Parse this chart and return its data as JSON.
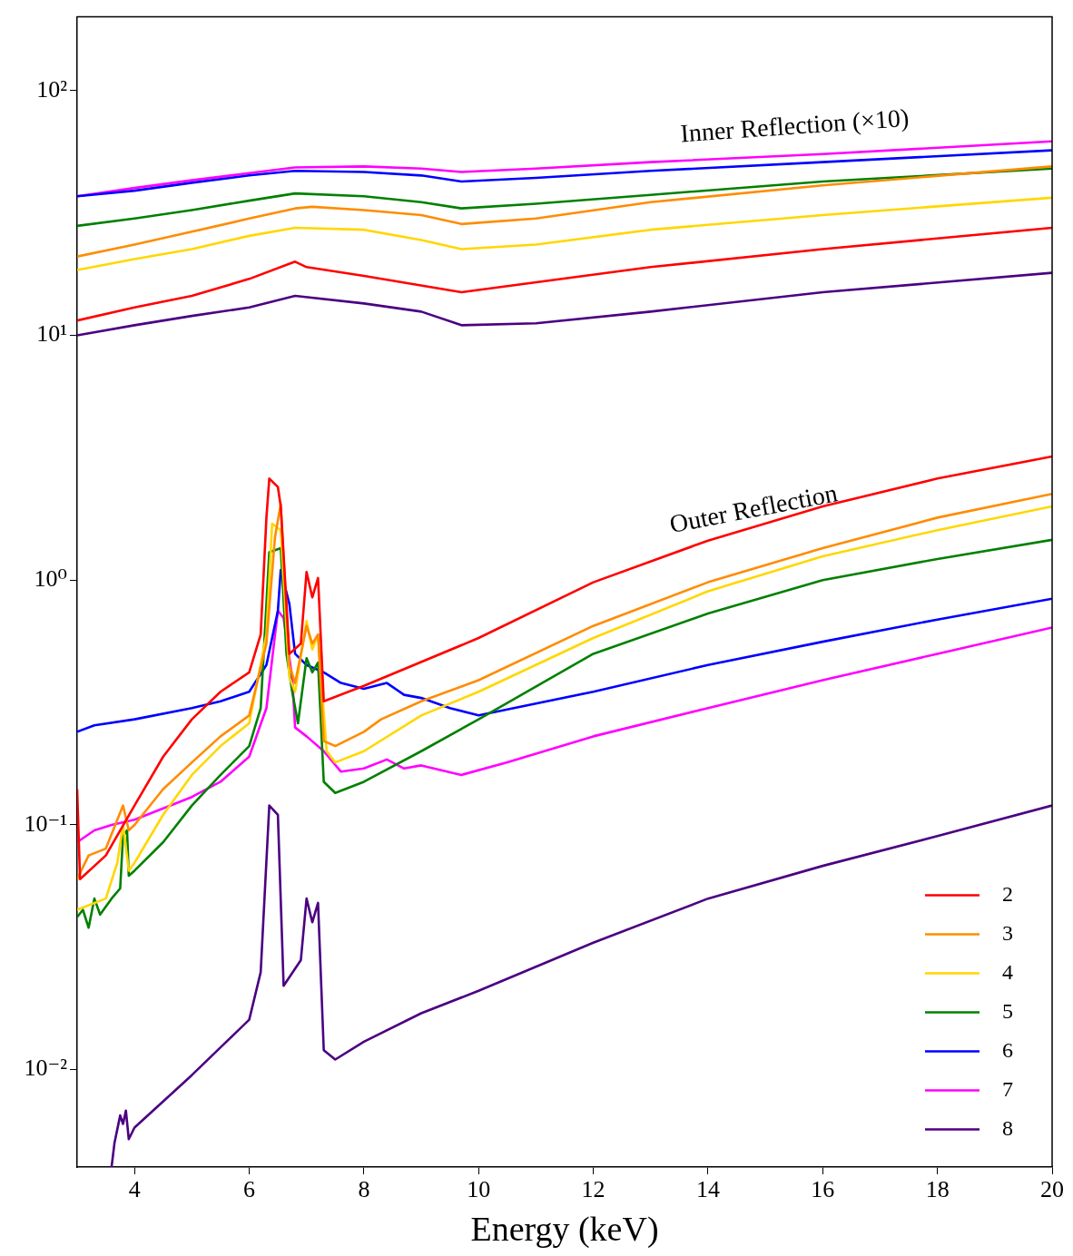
{
  "chart_data": {
    "type": "line",
    "xlabel": "Energy (keV)",
    "xlim": [
      3,
      20
    ],
    "xticks": [
      4,
      6,
      8,
      10,
      12,
      14,
      16,
      18,
      20
    ],
    "log": "y",
    "ylim": [
      0.004,
      200
    ],
    "yticks": [
      {
        "value": 0.01,
        "label": "10⁻²"
      },
      {
        "value": 0.1,
        "label": "10⁻¹"
      },
      {
        "value": 1,
        "label": "10⁰"
      },
      {
        "value": 10,
        "label": "10¹"
      },
      {
        "value": 100,
        "label": "10²"
      }
    ],
    "grid": false,
    "legend": "bottom right",
    "marker": "none",
    "annotations": [
      "Inner Reflection (×10)",
      "Outer Reflection"
    ],
    "series": [
      {
        "name": "2",
        "color": "#ff0000",
        "x": [
          3,
          3.05,
          3.5,
          4,
          4.5,
          5,
          5.5,
          6,
          6.2,
          6.3,
          6.35,
          6.5,
          6.55,
          6.7,
          6.9,
          7.0,
          7.1,
          7.2,
          7.3,
          8,
          10,
          12,
          14,
          16,
          18,
          20
        ],
        "values": [
          0.14,
          0.06,
          0.075,
          0.12,
          0.19,
          0.27,
          0.35,
          0.42,
          0.6,
          1.8,
          2.6,
          2.4,
          2.0,
          0.5,
          0.55,
          1.08,
          0.85,
          1.02,
          0.32,
          0.37,
          0.58,
          0.98,
          1.45,
          2.0,
          2.6,
          3.2
        ]
      },
      {
        "name": "3",
        "color": "#ff8c00",
        "x": [
          3,
          3.2,
          3.5,
          3.8,
          3.9,
          4,
          4.5,
          5,
          5.5,
          6,
          6.3,
          6.45,
          6.55,
          6.7,
          6.8,
          7.0,
          7.1,
          7.2,
          7.3,
          7.5,
          8,
          8.3,
          9,
          10,
          12,
          14,
          16,
          18,
          20
        ],
        "values": [
          0.06,
          0.075,
          0.08,
          0.12,
          0.095,
          0.1,
          0.14,
          0.18,
          0.23,
          0.28,
          0.55,
          1.5,
          2.05,
          0.45,
          0.38,
          0.65,
          0.55,
          0.6,
          0.22,
          0.21,
          0.24,
          0.27,
          0.32,
          0.39,
          0.65,
          0.98,
          1.35,
          1.8,
          2.25
        ]
      },
      {
        "name": "4",
        "color": "#ffd700",
        "x": [
          3,
          3.5,
          3.7,
          3.8,
          3.9,
          4,
          4.5,
          5,
          5.5,
          6,
          6.3,
          6.4,
          6.55,
          6.7,
          6.8,
          7.0,
          7.1,
          7.2,
          7.35,
          7.5,
          8,
          9,
          10,
          12,
          14,
          16,
          18,
          20
        ],
        "values": [
          0.045,
          0.05,
          0.07,
          0.1,
          0.065,
          0.07,
          0.11,
          0.16,
          0.21,
          0.26,
          0.6,
          1.7,
          1.6,
          0.4,
          0.35,
          0.68,
          0.52,
          0.6,
          0.2,
          0.18,
          0.2,
          0.28,
          0.35,
          0.58,
          0.9,
          1.25,
          1.6,
          2.0
        ]
      },
      {
        "name": "5",
        "color": "#008000",
        "x": [
          3,
          3.1,
          3.2,
          3.3,
          3.4,
          3.6,
          3.75,
          3.8,
          3.87,
          3.9,
          4,
          4.5,
          5,
          5.5,
          6,
          6.2,
          6.35,
          6.55,
          6.65,
          6.75,
          6.85,
          7.0,
          7.1,
          7.2,
          7.3,
          7.5,
          8,
          9,
          10,
          12,
          14,
          16,
          18,
          20
        ],
        "values": [
          0.042,
          0.045,
          0.038,
          0.05,
          0.043,
          0.05,
          0.055,
          0.09,
          0.095,
          0.062,
          0.065,
          0.085,
          0.12,
          0.16,
          0.21,
          0.3,
          1.3,
          1.35,
          0.5,
          0.35,
          0.26,
          0.48,
          0.42,
          0.46,
          0.15,
          0.135,
          0.15,
          0.2,
          0.27,
          0.5,
          0.73,
          1.0,
          1.22,
          1.46
        ]
      },
      {
        "name": "6",
        "color": "#0000ff",
        "x": [
          3,
          3.3,
          4,
          5,
          5.5,
          6,
          6.3,
          6.5,
          6.55,
          6.7,
          6.8,
          7.0,
          7.3,
          7.6,
          8,
          8.4,
          8.7,
          9,
          9.5,
          10,
          12,
          14,
          16,
          18,
          20
        ],
        "values": [
          0.24,
          0.255,
          0.27,
          0.3,
          0.32,
          0.35,
          0.45,
          0.75,
          1.1,
          0.8,
          0.5,
          0.45,
          0.42,
          0.38,
          0.36,
          0.38,
          0.34,
          0.33,
          0.3,
          0.28,
          0.35,
          0.45,
          0.56,
          0.69,
          0.84
        ]
      },
      {
        "name": "7",
        "color": "#ff00ff",
        "x": [
          3,
          3.3,
          3.6,
          4,
          5,
          5.5,
          6,
          6.3,
          6.5,
          6.6,
          6.75,
          6.8,
          7.0,
          7.3,
          7.6,
          8,
          8.4,
          8.7,
          9,
          9.7,
          10.5,
          12,
          14,
          16,
          18,
          20
        ],
        "values": [
          0.085,
          0.095,
          0.1,
          0.105,
          0.13,
          0.15,
          0.19,
          0.3,
          0.75,
          0.7,
          0.4,
          0.25,
          0.23,
          0.2,
          0.165,
          0.17,
          0.185,
          0.17,
          0.175,
          0.16,
          0.18,
          0.23,
          0.3,
          0.39,
          0.5,
          0.64
        ]
      },
      {
        "name": "8",
        "color": "#4b0082",
        "x": [
          3.6,
          3.65,
          3.75,
          3.8,
          3.85,
          3.9,
          4,
          5,
          6,
          6.2,
          6.35,
          6.5,
          6.6,
          6.9,
          7.0,
          7.1,
          7.2,
          7.3,
          7.5,
          8,
          9,
          10,
          12,
          14,
          16,
          18,
          20
        ],
        "values": [
          0.004,
          0.005,
          0.0065,
          0.006,
          0.0068,
          0.0052,
          0.0058,
          0.0095,
          0.016,
          0.025,
          0.12,
          0.11,
          0.022,
          0.028,
          0.05,
          0.04,
          0.048,
          0.012,
          0.011,
          0.013,
          0.017,
          0.021,
          0.033,
          0.05,
          0.068,
          0.09,
          0.12
        ]
      },
      {
        "color": "#ff0000",
        "x": [
          3,
          4,
          5,
          6,
          6.8,
          7.0,
          8,
          9.7,
          13,
          16,
          20
        ],
        "values": [
          11.5,
          13,
          14.5,
          17,
          20,
          19,
          17.5,
          15,
          19,
          22.5,
          27.5
        ]
      },
      {
        "color": "#ff8c00",
        "x": [
          3,
          4,
          5,
          6,
          6.8,
          7.1,
          8,
          9,
          9.7,
          11,
          13,
          16,
          20
        ],
        "values": [
          21,
          23.5,
          26.5,
          30,
          33,
          33.5,
          32.5,
          31,
          28.5,
          30,
          35,
          41,
          49
        ]
      },
      {
        "color": "#ffd700",
        "x": [
          3,
          4,
          5,
          6,
          6.8,
          8,
          9,
          9.7,
          11,
          13,
          16,
          20
        ],
        "values": [
          18.5,
          20.5,
          22.5,
          25.5,
          27.5,
          27,
          24.5,
          22.5,
          23.5,
          27,
          31,
          36.5
        ]
      },
      {
        "color": "#008000",
        "x": [
          3,
          4,
          5,
          6,
          6.8,
          8,
          9,
          9.7,
          11,
          13,
          16,
          20
        ],
        "values": [
          28,
          30,
          32.5,
          35.5,
          38,
          37,
          35,
          33,
          34.5,
          37.5,
          42.5,
          48
        ]
      },
      {
        "color": "#0000ff",
        "x": [
          3,
          4,
          5,
          6,
          6.8,
          8,
          9,
          9.7,
          11,
          13,
          16,
          20
        ],
        "values": [
          37,
          39,
          42,
          45,
          47,
          46.5,
          45,
          42.5,
          44,
          47,
          51,
          57
        ]
      },
      {
        "color": "#ff00ff",
        "x": [
          3,
          4,
          5,
          6,
          6.8,
          8,
          9,
          9.7,
          11,
          13,
          16,
          20
        ],
        "values": [
          37,
          40,
          43,
          46,
          48.5,
          49,
          48,
          46.5,
          48,
          51,
          55,
          62
        ]
      },
      {
        "color": "#4b0082",
        "x": [
          3,
          4,
          5,
          6,
          6.8,
          8,
          9,
          9.7,
          11,
          13,
          16,
          20
        ],
        "values": [
          10,
          11,
          12,
          13,
          14.5,
          13.5,
          12.5,
          11,
          11.2,
          12.5,
          15,
          18
        ]
      }
    ]
  }
}
